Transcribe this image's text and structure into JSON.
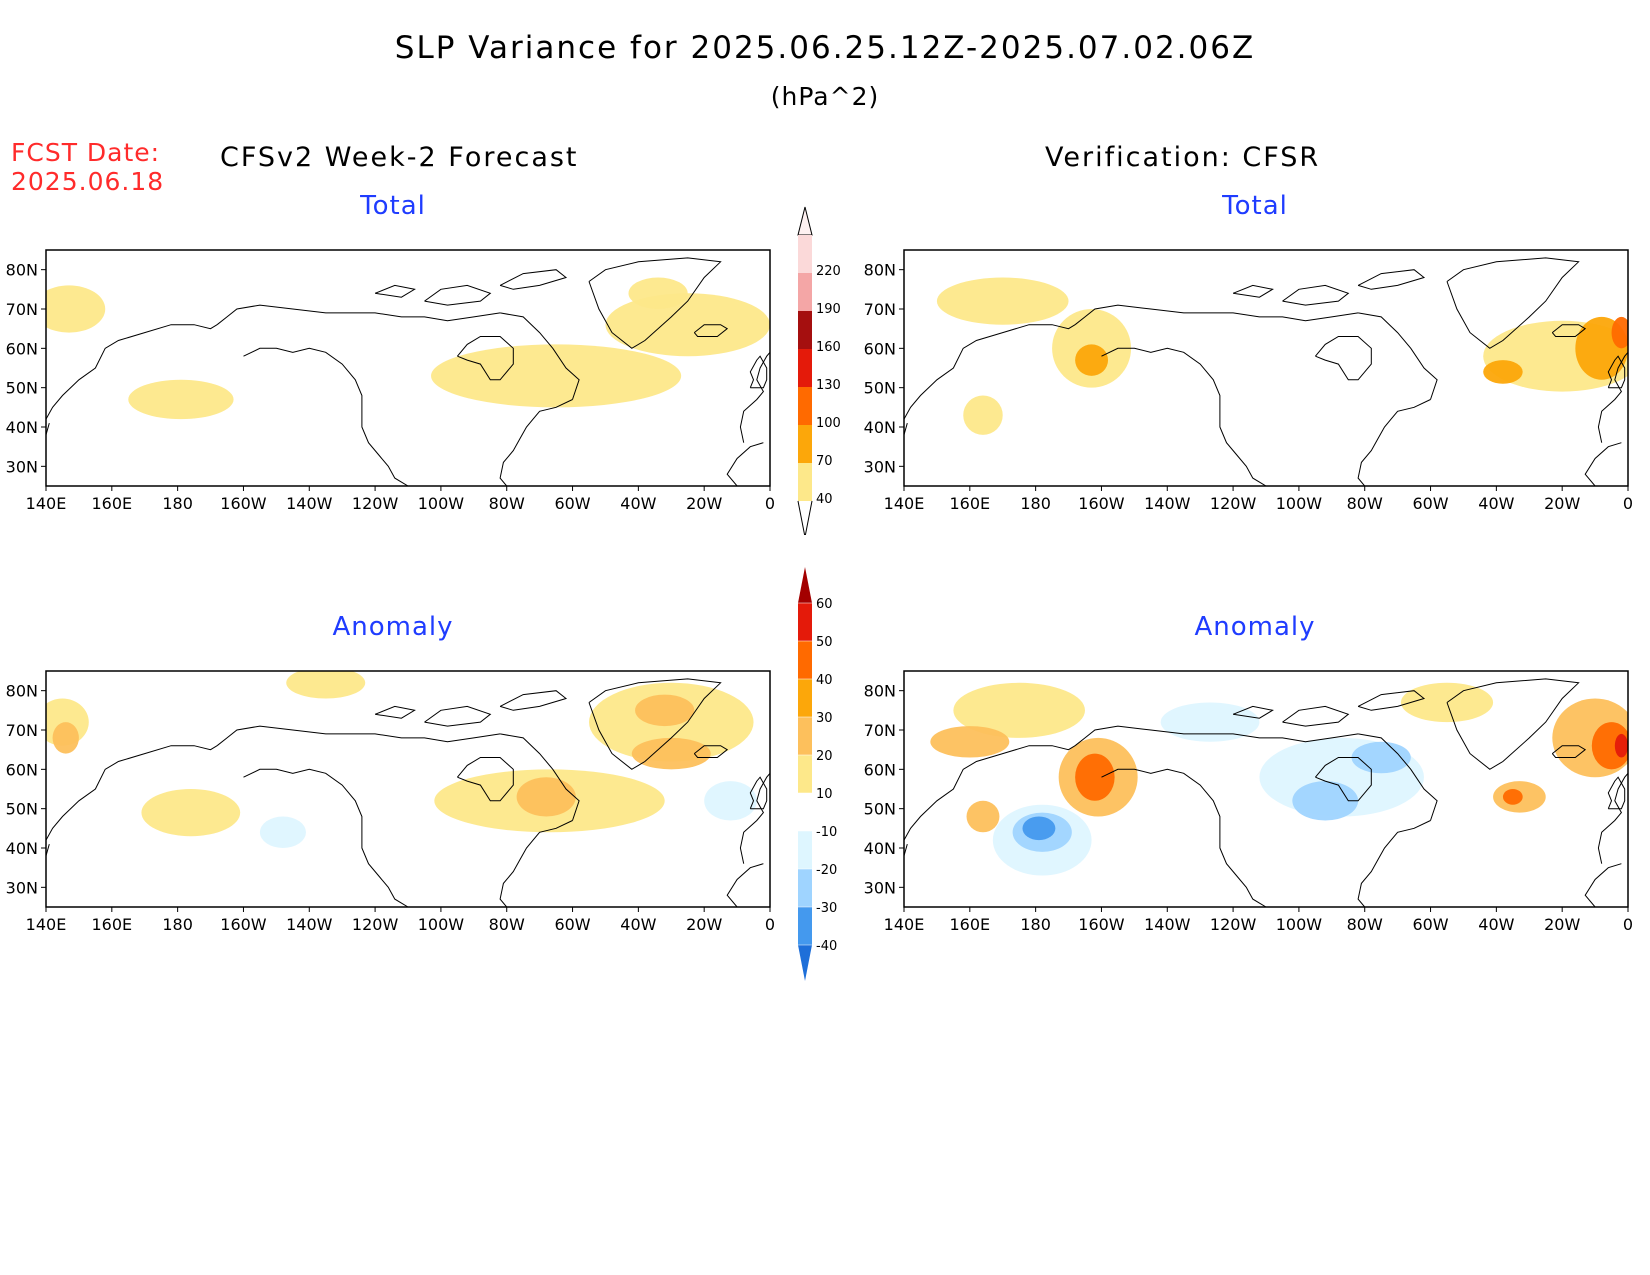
{
  "header": {
    "title": "SLP Variance for 2025.06.25.12Z-2025.07.02.06Z",
    "units": "(hPa^2)",
    "fcst_label": "FCST Date:",
    "fcst_date": "2025.06.18"
  },
  "columns": {
    "left": "CFSv2 Week-2 Forecast",
    "right": "Verification: CFSR"
  },
  "panels": {
    "top_left": "Total",
    "top_right": "Total",
    "bottom_left": "Anomaly",
    "bottom_right": "Anomaly"
  },
  "axes": {
    "lon_labels": [
      "140E",
      "160E",
      "180",
      "160W",
      "140W",
      "120W",
      "100W",
      "80W",
      "60W",
      "40W",
      "20W",
      "0"
    ],
    "lat_labels": [
      "80N",
      "70N",
      "60N",
      "50N",
      "40N",
      "30N"
    ],
    "lon_range": [
      140,
      360
    ],
    "lat_range": [
      25,
      85
    ]
  },
  "colorbars": {
    "total": {
      "levels": [
        "40",
        "70",
        "100",
        "130",
        "160",
        "190",
        "220"
      ],
      "colors": [
        "#fde88a",
        "#fca70a",
        "#ff6a00",
        "#e41a0a",
        "#a50f0f",
        "#f4a6a6",
        "#fbd9d9"
      ]
    },
    "anomaly": {
      "levels": [
        "60",
        "50",
        "40",
        "30",
        "20",
        "10",
        "-10",
        "-20",
        "-30",
        "-40"
      ],
      "colors": [
        "#a30000",
        "#e41a0a",
        "#ff6a00",
        "#fca70a",
        "#fdc05c",
        "#fde88a",
        "#ffffff",
        "#def6ff",
        "#9fd4ff",
        "#4499ee",
        "#1e6fd9"
      ]
    }
  },
  "map_regions": {
    "top_left": [
      {
        "lon": 147,
        "lat": 70,
        "rx": 11,
        "ry": 6,
        "level": "40-70"
      },
      {
        "lon": 181,
        "lat": 47,
        "rx": 16,
        "ry": 5,
        "level": "40-70"
      },
      {
        "lon": 295,
        "lat": 53,
        "rx": 38,
        "ry": 8,
        "level": "40-70"
      },
      {
        "lon": 335,
        "lat": 66,
        "rx": 25,
        "ry": 8,
        "level": "40-70"
      },
      {
        "lon": 326,
        "lat": 74,
        "rx": 9,
        "ry": 4,
        "level": "40-70"
      }
    ],
    "top_right": [
      {
        "lon": 197,
        "lat": 60,
        "rx": 12,
        "ry": 10,
        "level": "40-70"
      },
      {
        "lon": 197,
        "lat": 57,
        "rx": 5,
        "ry": 4,
        "level": "70-100"
      },
      {
        "lon": 164,
        "lat": 43,
        "rx": 6,
        "ry": 5,
        "level": "40-70"
      },
      {
        "lon": 170,
        "lat": 72,
        "rx": 20,
        "ry": 6,
        "level": "40-70"
      },
      {
        "lon": 340,
        "lat": 58,
        "rx": 24,
        "ry": 9,
        "level": "40-70"
      },
      {
        "lon": 352,
        "lat": 60,
        "rx": 8,
        "ry": 8,
        "level": "70-100"
      },
      {
        "lon": 322,
        "lat": 54,
        "rx": 6,
        "ry": 3,
        "level": "70-100"
      },
      {
        "lon": 358,
        "lat": 64,
        "rx": 3,
        "ry": 4,
        "level": "100-130"
      }
    ],
    "bottom_left": [
      {
        "lon": 145,
        "lat": 72,
        "rx": 8,
        "ry": 6,
        "level": "10-20"
      },
      {
        "lon": 146,
        "lat": 68,
        "rx": 4,
        "ry": 4,
        "level": "20-30"
      },
      {
        "lon": 184,
        "lat": 49,
        "rx": 15,
        "ry": 6,
        "level": "10-20"
      },
      {
        "lon": 225,
        "lat": 82,
        "rx": 12,
        "ry": 4,
        "level": "10-20"
      },
      {
        "lon": 293,
        "lat": 52,
        "rx": 35,
        "ry": 8,
        "level": "10-20"
      },
      {
        "lon": 292,
        "lat": 53,
        "rx": 9,
        "ry": 5,
        "level": "20-30"
      },
      {
        "lon": 330,
        "lat": 72,
        "rx": 25,
        "ry": 10,
        "level": "10-20"
      },
      {
        "lon": 328,
        "lat": 75,
        "rx": 9,
        "ry": 4,
        "level": "20-30"
      },
      {
        "lon": 330,
        "lat": 64,
        "rx": 12,
        "ry": 4,
        "level": "20-30"
      },
      {
        "lon": 212,
        "lat": 44,
        "rx": 7,
        "ry": 4,
        "level": "-10--20"
      },
      {
        "lon": 348,
        "lat": 52,
        "rx": 8,
        "ry": 5,
        "level": "-10--20"
      }
    ],
    "bottom_right": [
      {
        "lon": 182,
        "lat": 42,
        "rx": 15,
        "ry": 9,
        "level": "-10--20"
      },
      {
        "lon": 182,
        "lat": 44,
        "rx": 9,
        "ry": 5,
        "level": "-20--30"
      },
      {
        "lon": 181,
        "lat": 45,
        "rx": 5,
        "ry": 3,
        "level": "-30--40"
      },
      {
        "lon": 199,
        "lat": 58,
        "rx": 12,
        "ry": 10,
        "level": "20-30"
      },
      {
        "lon": 198,
        "lat": 58,
        "rx": 6,
        "ry": 6,
        "level": "40-50"
      },
      {
        "lon": 175,
        "lat": 75,
        "rx": 20,
        "ry": 7,
        "level": "10-20"
      },
      {
        "lon": 160,
        "lat": 67,
        "rx": 12,
        "ry": 4,
        "level": "20-30"
      },
      {
        "lon": 164,
        "lat": 48,
        "rx": 5,
        "ry": 4,
        "level": "20-30"
      },
      {
        "lon": 273,
        "lat": 58,
        "rx": 25,
        "ry": 10,
        "level": "-10--20"
      },
      {
        "lon": 268,
        "lat": 52,
        "rx": 10,
        "ry": 5,
        "level": "-20--30"
      },
      {
        "lon": 285,
        "lat": 63,
        "rx": 9,
        "ry": 4,
        "level": "-20--30"
      },
      {
        "lon": 233,
        "lat": 72,
        "rx": 15,
        "ry": 5,
        "level": "-10--20"
      },
      {
        "lon": 305,
        "lat": 77,
        "rx": 14,
        "ry": 5,
        "level": "10-20"
      },
      {
        "lon": 327,
        "lat": 53,
        "rx": 8,
        "ry": 4,
        "level": "20-30"
      },
      {
        "lon": 325,
        "lat": 53,
        "rx": 3,
        "ry": 2,
        "level": "40-50"
      },
      {
        "lon": 350,
        "lat": 68,
        "rx": 13,
        "ry": 10,
        "level": "20-30"
      },
      {
        "lon": 355,
        "lat": 66,
        "rx": 6,
        "ry": 6,
        "level": "40-50"
      },
      {
        "lon": 358,
        "lat": 66,
        "rx": 2,
        "ry": 3,
        "level": "50-60"
      }
    ]
  }
}
